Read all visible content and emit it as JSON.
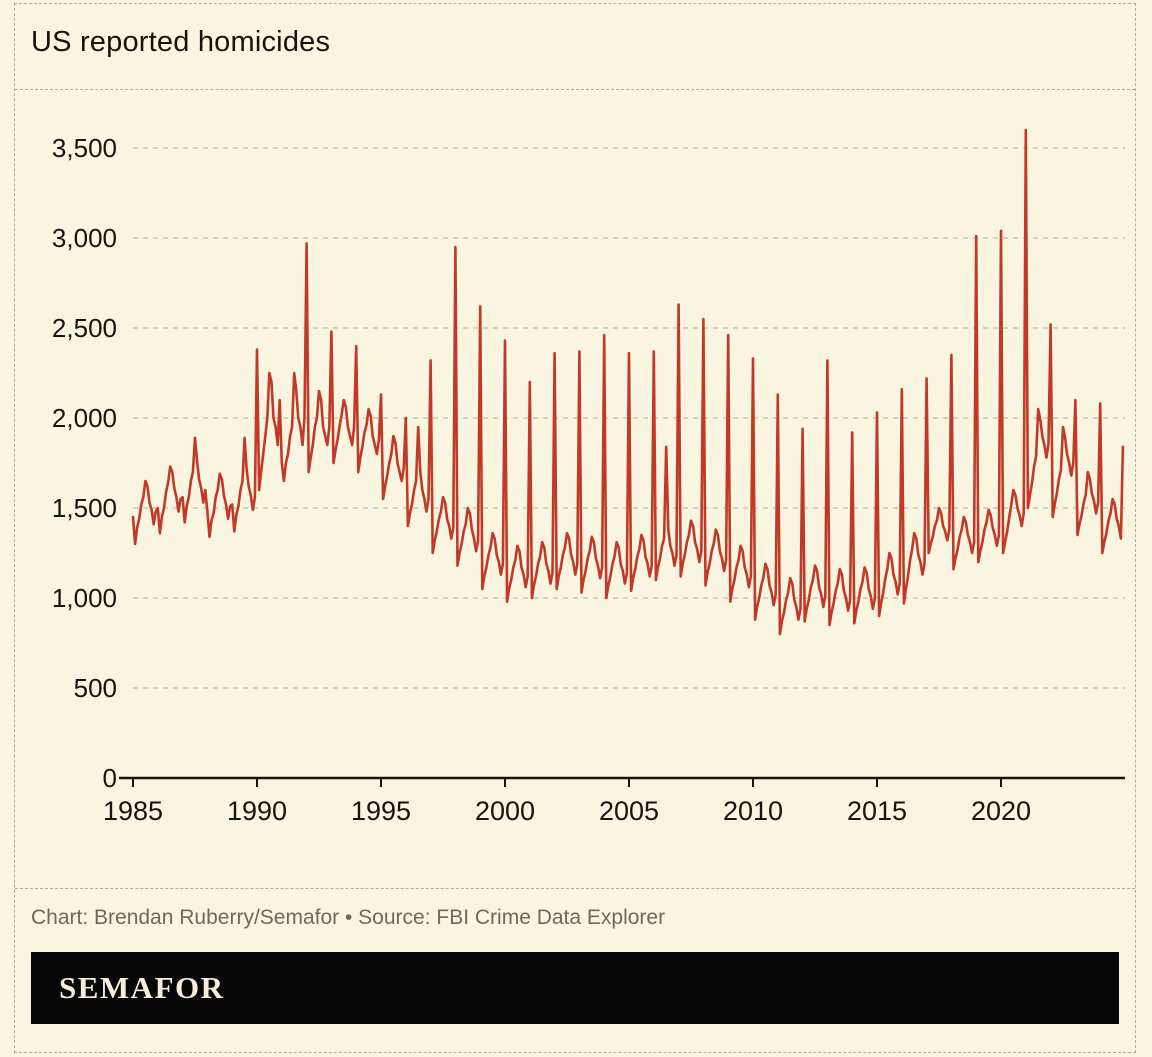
{
  "page": {
    "title": "US reported homicides",
    "credit": "Chart: Brendan Ruberry/Semafor • Source: FBI Crime Data Explorer",
    "logo": "SEMAFOR"
  },
  "colors": {
    "background": "#faf5e1",
    "line": "#c13a27",
    "text": "#16140e",
    "muted_text": "#6e6a5b",
    "grid": "#b2ab98",
    "logo_bar": "#070707",
    "logo_text": "#f6eed6"
  },
  "chart_data": {
    "type": "line",
    "title": "US reported homicides",
    "xlabel": "",
    "ylabel": "",
    "x_ticks": [
      1985,
      1990,
      1995,
      2000,
      2005,
      2010,
      2015,
      2020
    ],
    "y_ticks": [
      0,
      500,
      1000,
      1500,
      2000,
      2500,
      3000,
      3500
    ],
    "ylim": [
      0,
      3600
    ],
    "x_range": [
      1985,
      2025
    ],
    "grid": "horizontal-dashed",
    "legend": "none",
    "line_color": "#c13a27",
    "series": [
      {
        "name": "US reported homicides (monthly, estimated from chart)",
        "cadence": "monthly",
        "years": [
          {
            "year": 1985,
            "monthly": [
              1450,
              1300,
              1390,
              1440,
              1520,
              1560,
              1650,
              1620,
              1530,
              1490,
              1410,
              1480
            ]
          },
          {
            "year": 1986,
            "monthly": [
              1500,
              1360,
              1450,
              1500,
              1590,
              1640,
              1730,
              1700,
              1610,
              1560,
              1480,
              1550
            ]
          },
          {
            "year": 1987,
            "monthly": [
              1560,
              1420,
              1510,
              1560,
              1650,
              1700,
              1890,
              1760,
              1660,
              1610,
              1530,
              1600
            ]
          },
          {
            "year": 1988,
            "monthly": [
              1480,
              1340,
              1430,
              1470,
              1560,
              1600,
              1690,
              1660,
              1570,
              1520,
              1440,
              1510
            ]
          },
          {
            "year": 1989,
            "monthly": [
              1520,
              1370,
              1460,
              1510,
              1600,
              1650,
              1890,
              1710,
              1620,
              1570,
              1490,
              1560
            ]
          },
          {
            "year": 1990,
            "monthly": [
              2380,
              1600,
              1700,
              1800,
              1900,
              2000,
              2250,
              2200,
              2000,
              1950,
              1850,
              2100
            ]
          },
          {
            "year": 1991,
            "monthly": [
              1750,
              1650,
              1750,
              1800,
              1900,
              1950,
              2250,
              2150,
              2000,
              1950,
              1850,
              2000
            ]
          },
          {
            "year": 1992,
            "monthly": [
              2970,
              1700,
              1780,
              1850,
              1950,
              2000,
              2150,
              2100,
              1950,
              1900,
              1850,
              1950
            ]
          },
          {
            "year": 1993,
            "monthly": [
              2480,
              1750,
              1820,
              1880,
              1960,
              2020,
              2100,
              2060,
              1950,
              1900,
              1850,
              1950
            ]
          },
          {
            "year": 1994,
            "monthly": [
              2400,
              1700,
              1780,
              1840,
              1920,
              1960,
              2050,
              2010,
              1900,
              1850,
              1800,
              1880
            ]
          },
          {
            "year": 1995,
            "monthly": [
              2130,
              1550,
              1620,
              1680,
              1750,
              1800,
              1900,
              1860,
              1750,
              1700,
              1650,
              1720
            ]
          },
          {
            "year": 1996,
            "monthly": [
              2000,
              1400,
              1470,
              1520,
              1600,
              1650,
              1950,
              1700,
              1600,
              1550,
              1480,
              1550
            ]
          },
          {
            "year": 1997,
            "monthly": [
              2320,
              1250,
              1320,
              1370,
              1440,
              1480,
              1560,
              1530,
              1440,
              1400,
              1330,
              1390
            ]
          },
          {
            "year": 1998,
            "monthly": [
              2950,
              1180,
              1250,
              1300,
              1370,
              1410,
              1500,
              1470,
              1380,
              1330,
              1260,
              1320
            ]
          },
          {
            "year": 1999,
            "monthly": [
              2620,
              1050,
              1120,
              1170,
              1240,
              1280,
              1360,
              1330,
              1240,
              1200,
              1130,
              1190
            ]
          },
          {
            "year": 2000,
            "monthly": [
              2430,
              980,
              1050,
              1100,
              1170,
              1210,
              1290,
              1260,
              1170,
              1130,
              1060,
              1120
            ]
          },
          {
            "year": 2001,
            "monthly": [
              2200,
              1000,
              1070,
              1120,
              1190,
              1230,
              1310,
              1280,
              1190,
              1150,
              1080,
              1140
            ]
          },
          {
            "year": 2002,
            "monthly": [
              2360,
              1050,
              1120,
              1170,
              1240,
              1280,
              1360,
              1330,
              1240,
              1200,
              1130,
              1190
            ]
          },
          {
            "year": 2003,
            "monthly": [
              2370,
              1030,
              1100,
              1150,
              1220,
              1260,
              1340,
              1310,
              1220,
              1180,
              1110,
              1170
            ]
          },
          {
            "year": 2004,
            "monthly": [
              2460,
              1000,
              1070,
              1120,
              1190,
              1230,
              1310,
              1280,
              1190,
              1150,
              1080,
              1140
            ]
          },
          {
            "year": 2005,
            "monthly": [
              2360,
              1040,
              1110,
              1160,
              1230,
              1270,
              1350,
              1320,
              1230,
              1190,
              1120,
              1180
            ]
          },
          {
            "year": 2006,
            "monthly": [
              2370,
              1100,
              1170,
              1220,
              1290,
              1330,
              1840,
              1380,
              1290,
              1250,
              1180,
              1240
            ]
          },
          {
            "year": 2007,
            "monthly": [
              2630,
              1120,
              1190,
              1240,
              1310,
              1350,
              1430,
              1400,
              1310,
              1270,
              1200,
              1260
            ]
          },
          {
            "year": 2008,
            "monthly": [
              2550,
              1070,
              1140,
              1190,
              1260,
              1300,
              1380,
              1350,
              1260,
              1220,
              1150,
              1210
            ]
          },
          {
            "year": 2009,
            "monthly": [
              2460,
              980,
              1050,
              1100,
              1170,
              1210,
              1290,
              1260,
              1170,
              1130,
              1060,
              1120
            ]
          },
          {
            "year": 2010,
            "monthly": [
              2330,
              880,
              950,
              1000,
              1070,
              1110,
              1190,
              1160,
              1070,
              1030,
              960,
              1020
            ]
          },
          {
            "year": 2011,
            "monthly": [
              2130,
              800,
              870,
              920,
              990,
              1030,
              1110,
              1080,
              990,
              950,
              880,
              940
            ]
          },
          {
            "year": 2012,
            "monthly": [
              1940,
              870,
              940,
              990,
              1060,
              1100,
              1180,
              1150,
              1060,
              1020,
              950,
              1010
            ]
          },
          {
            "year": 2013,
            "monthly": [
              2320,
              850,
              920,
              970,
              1040,
              1080,
              1160,
              1130,
              1040,
              1000,
              930,
              990
            ]
          },
          {
            "year": 2014,
            "monthly": [
              1920,
              860,
              930,
              980,
              1050,
              1090,
              1170,
              1140,
              1050,
              1010,
              940,
              1000
            ]
          },
          {
            "year": 2015,
            "monthly": [
              2030,
              900,
              970,
              1030,
              1110,
              1160,
              1250,
              1220,
              1130,
              1090,
              1020,
              1080
            ]
          },
          {
            "year": 2016,
            "monthly": [
              2160,
              970,
              1050,
              1120,
              1210,
              1270,
              1360,
              1330,
              1240,
              1200,
              1130,
              1190
            ]
          },
          {
            "year": 2017,
            "monthly": [
              2220,
              1250,
              1300,
              1340,
              1400,
              1430,
              1500,
              1470,
              1400,
              1370,
              1320,
              1380
            ]
          },
          {
            "year": 2018,
            "monthly": [
              2350,
              1160,
              1220,
              1270,
              1340,
              1380,
              1450,
              1420,
              1350,
              1310,
              1250,
              1310
            ]
          },
          {
            "year": 2019,
            "monthly": [
              3010,
              1200,
              1260,
              1310,
              1380,
              1420,
              1490,
              1460,
              1390,
              1350,
              1290,
              1350
            ]
          },
          {
            "year": 2020,
            "monthly": [
              3040,
              1250,
              1310,
              1370,
              1450,
              1520,
              1600,
              1570,
              1500,
              1460,
              1400,
              1470
            ]
          },
          {
            "year": 2021,
            "monthly": [
              3600,
              1500,
              1570,
              1640,
              1730,
              1790,
              2050,
              1990,
              1900,
              1850,
              1780,
              1860
            ]
          },
          {
            "year": 2022,
            "monthly": [
              2520,
              1450,
              1520,
              1580,
              1660,
              1710,
              1950,
              1890,
              1800,
              1750,
              1680,
              1750
            ]
          },
          {
            "year": 2023,
            "monthly": [
              2100,
              1350,
              1410,
              1460,
              1530,
              1570,
              1700,
              1660,
              1580,
              1540,
              1470,
              1530
            ]
          },
          {
            "year": 2024,
            "monthly": [
              2080,
              1250,
              1310,
              1360,
              1430,
              1470,
              1550,
              1520,
              1440,
              1400,
              1330,
              1840
            ]
          }
        ]
      }
    ]
  }
}
